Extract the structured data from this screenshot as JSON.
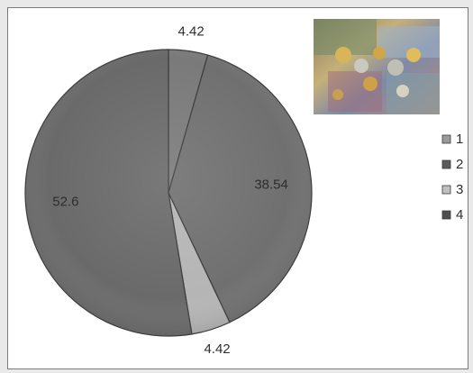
{
  "chart_data": {
    "type": "pie",
    "categories": [
      "1",
      "2",
      "3",
      "4"
    ],
    "values": [
      4.42,
      38.54,
      4.42,
      52.6
    ],
    "data_labels": [
      "4.42",
      "38.54",
      "4.42",
      "52.6"
    ],
    "start_angle_deg": 0,
    "direction": "clockwise",
    "legend": "right",
    "title": "",
    "colors": [
      "#7a7a7a",
      "#707070",
      "#b5b5b5",
      "#6a6a6a"
    ],
    "legend_colors": [
      "#9a9a9a",
      "#5a5a5a",
      "#c0c0c0",
      "#4e4e4e"
    ]
  },
  "image": {
    "icon": "money-coins-banknotes-photo"
  }
}
